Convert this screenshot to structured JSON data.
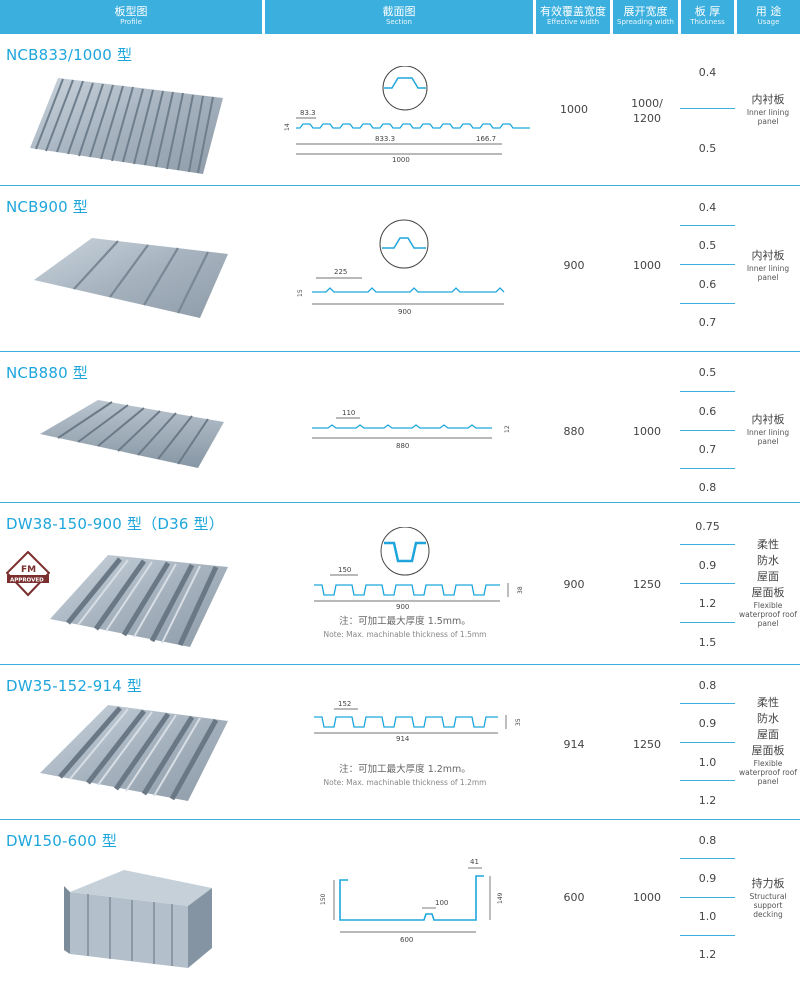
{
  "header": [
    {
      "zh": "板型图",
      "en": "Profile"
    },
    {
      "zh": "截面图",
      "en": "Section"
    },
    {
      "zh": "有效覆盖宽度",
      "en": "Effective width"
    },
    {
      "zh": "展开宽度",
      "en": "Spreading width"
    },
    {
      "zh": "板 厚",
      "en": "Thickness"
    },
    {
      "zh": "用 途",
      "en": "Usage"
    }
  ],
  "rows": [
    {
      "title": "NCB833/1000 型",
      "dims": [
        "83.3",
        "14",
        "833.3",
        "166.7",
        "1000"
      ],
      "effective": "1000",
      "spreading": "1000/\n1200",
      "thickness": [
        "0.4",
        "0.5"
      ],
      "usage_zh": "内衬板",
      "usage_en": "Inner lining panel"
    },
    {
      "title": "NCB900 型",
      "dims": [
        "225",
        "15",
        "900"
      ],
      "effective": "900",
      "spreading": "1000",
      "thickness": [
        "0.4",
        "0.5",
        "0.6",
        "0.7"
      ],
      "usage_zh": "内衬板",
      "usage_en": "Inner lining panel"
    },
    {
      "title": "NCB880 型",
      "dims": [
        "110",
        "12",
        "880"
      ],
      "effective": "880",
      "spreading": "1000",
      "thickness": [
        "0.5",
        "0.6",
        "0.7",
        "0.8"
      ],
      "usage_zh": "内衬板",
      "usage_en": "Inner lining panel"
    },
    {
      "title": "DW38-150-900 型（D36 型）",
      "fm_logo": [
        "FM",
        "APPROVED"
      ],
      "dims": [
        "150",
        "38",
        "900"
      ],
      "note_zh": "注：可加工最大厚度 1.5mm。",
      "note_en": "Note: Max. machinable thickness of 1.5mm",
      "effective": "900",
      "spreading": "1250",
      "thickness": [
        "0.75",
        "0.9",
        "1.2",
        "1.5"
      ],
      "usage_zh": "柔性\n防水\n屋面\n屋面板",
      "usage_en": "Flexible waterproof roof panel"
    },
    {
      "title": "DW35-152-914 型",
      "dims": [
        "152",
        "35",
        "914"
      ],
      "note_zh": "注：可加工最大厚度 1.2mm。",
      "note_en": "Note: Max. machinable thickness of 1.2mm",
      "effective": "914",
      "spreading": "1250",
      "thickness": [
        "0.8",
        "0.9",
        "1.0",
        "1.2"
      ],
      "usage_zh": "柔性\n防水\n屋面\n屋面板",
      "usage_en": "Flexible waterproof roof panel"
    },
    {
      "title": "DW150-600 型",
      "dims": [
        "41",
        "150",
        "100",
        "149",
        "600"
      ],
      "effective": "600",
      "spreading": "1000",
      "thickness": [
        "0.8",
        "0.9",
        "1.0",
        "1.2"
      ],
      "usage_zh": "持力板",
      "usage_en": "Structural support decking"
    }
  ]
}
